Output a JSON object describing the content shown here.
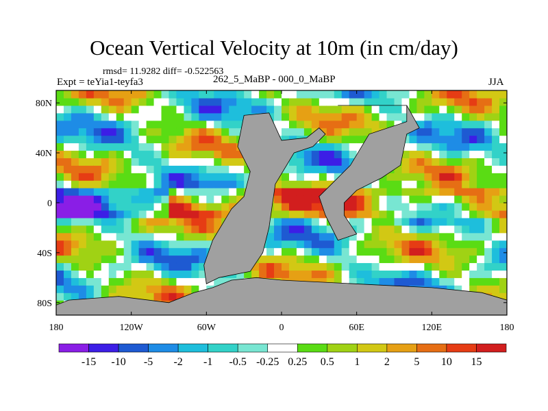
{
  "chart_data": {
    "type": "heatmap",
    "title": "Ocean Vertical Velocity at 10m (in cm/day)",
    "stats_line": "rmsd= 11.9282  diff= -0.522563",
    "experiment": "Expt = teYia1-teyfa3",
    "comparison": "262_5_MaBP - 000_0_MaBP",
    "season": "JJA",
    "x_axis": {
      "range": [
        -180,
        180
      ],
      "ticks": [
        {
          "value": -180,
          "label": "180"
        },
        {
          "value": -120,
          "label": "120W"
        },
        {
          "value": -60,
          "label": "60W"
        },
        {
          "value": 0,
          "label": "0"
        },
        {
          "value": 60,
          "label": "60E"
        },
        {
          "value": 120,
          "label": "120E"
        },
        {
          "value": 180,
          "label": "180"
        }
      ]
    },
    "y_axis": {
      "range": [
        -90,
        90
      ],
      "ticks": [
        {
          "value": 80,
          "label": "80N"
        },
        {
          "value": 40,
          "label": "40N"
        },
        {
          "value": 0,
          "label": "0"
        },
        {
          "value": -40,
          "label": "40S"
        },
        {
          "value": -80,
          "label": "80S"
        }
      ]
    },
    "colorbar": {
      "levels": [
        "-15",
        "-10",
        "-5",
        "-2",
        "-1",
        "-0.5",
        "-0.25",
        "0.25",
        "0.5",
        "1",
        "2",
        "5",
        "10",
        "15"
      ],
      "colors": [
        "#8a1ee6",
        "#3c1ee6",
        "#1e5ad2",
        "#1e8ce6",
        "#1ebedc",
        "#32d2c8",
        "#78e6d2",
        "#ffffff",
        "#5adc14",
        "#a0d214",
        "#d2c814",
        "#e6a014",
        "#e66e14",
        "#e63c14",
        "#d21e1e"
      ]
    },
    "land_color": "#a0a0a0",
    "land_regions": [
      {
        "name": "western-continent",
        "points": [
          [
            -30,
            70
          ],
          [
            -10,
            72
          ],
          [
            0,
            50
          ],
          [
            20,
            52
          ],
          [
            30,
            60
          ],
          [
            35,
            55
          ],
          [
            25,
            45
          ],
          [
            10,
            40
          ],
          [
            -5,
            15
          ],
          [
            -10,
            -20
          ],
          [
            -15,
            -40
          ],
          [
            -25,
            -55
          ],
          [
            -50,
            -60
          ],
          [
            -60,
            -65
          ],
          [
            -62,
            -50
          ],
          [
            -55,
            -30
          ],
          [
            -40,
            -5
          ],
          [
            -30,
            5
          ],
          [
            -25,
            25
          ],
          [
            -35,
            45
          ],
          [
            -30,
            70
          ]
        ]
      },
      {
        "name": "eastern-continent",
        "points": [
          [
            45,
            78
          ],
          [
            100,
            78
          ],
          [
            100,
            65
          ],
          [
            70,
            55
          ],
          [
            55,
            30
          ],
          [
            40,
            15
          ],
          [
            30,
            5
          ],
          [
            35,
            -10
          ],
          [
            45,
            -30
          ],
          [
            60,
            -25
          ],
          [
            50,
            -10
          ],
          [
            50,
            0
          ],
          [
            60,
            10
          ],
          [
            80,
            20
          ],
          [
            95,
            30
          ],
          [
            100,
            55
          ],
          [
            110,
            60
          ],
          [
            100,
            78
          ],
          [
            45,
            78
          ]
        ]
      },
      {
        "name": "southern-continent",
        "points": [
          [
            -180,
            -82
          ],
          [
            -170,
            -78
          ],
          [
            -130,
            -75
          ],
          [
            -90,
            -80
          ],
          [
            -70,
            -72
          ],
          [
            -55,
            -68
          ],
          [
            -40,
            -62
          ],
          [
            -20,
            -60
          ],
          [
            0,
            -62
          ],
          [
            40,
            -64
          ],
          [
            80,
            -66
          ],
          [
            120,
            -68
          ],
          [
            160,
            -72
          ],
          [
            180,
            -78
          ],
          [
            180,
            -90
          ],
          [
            -180,
            -90
          ]
        ]
      }
    ]
  }
}
